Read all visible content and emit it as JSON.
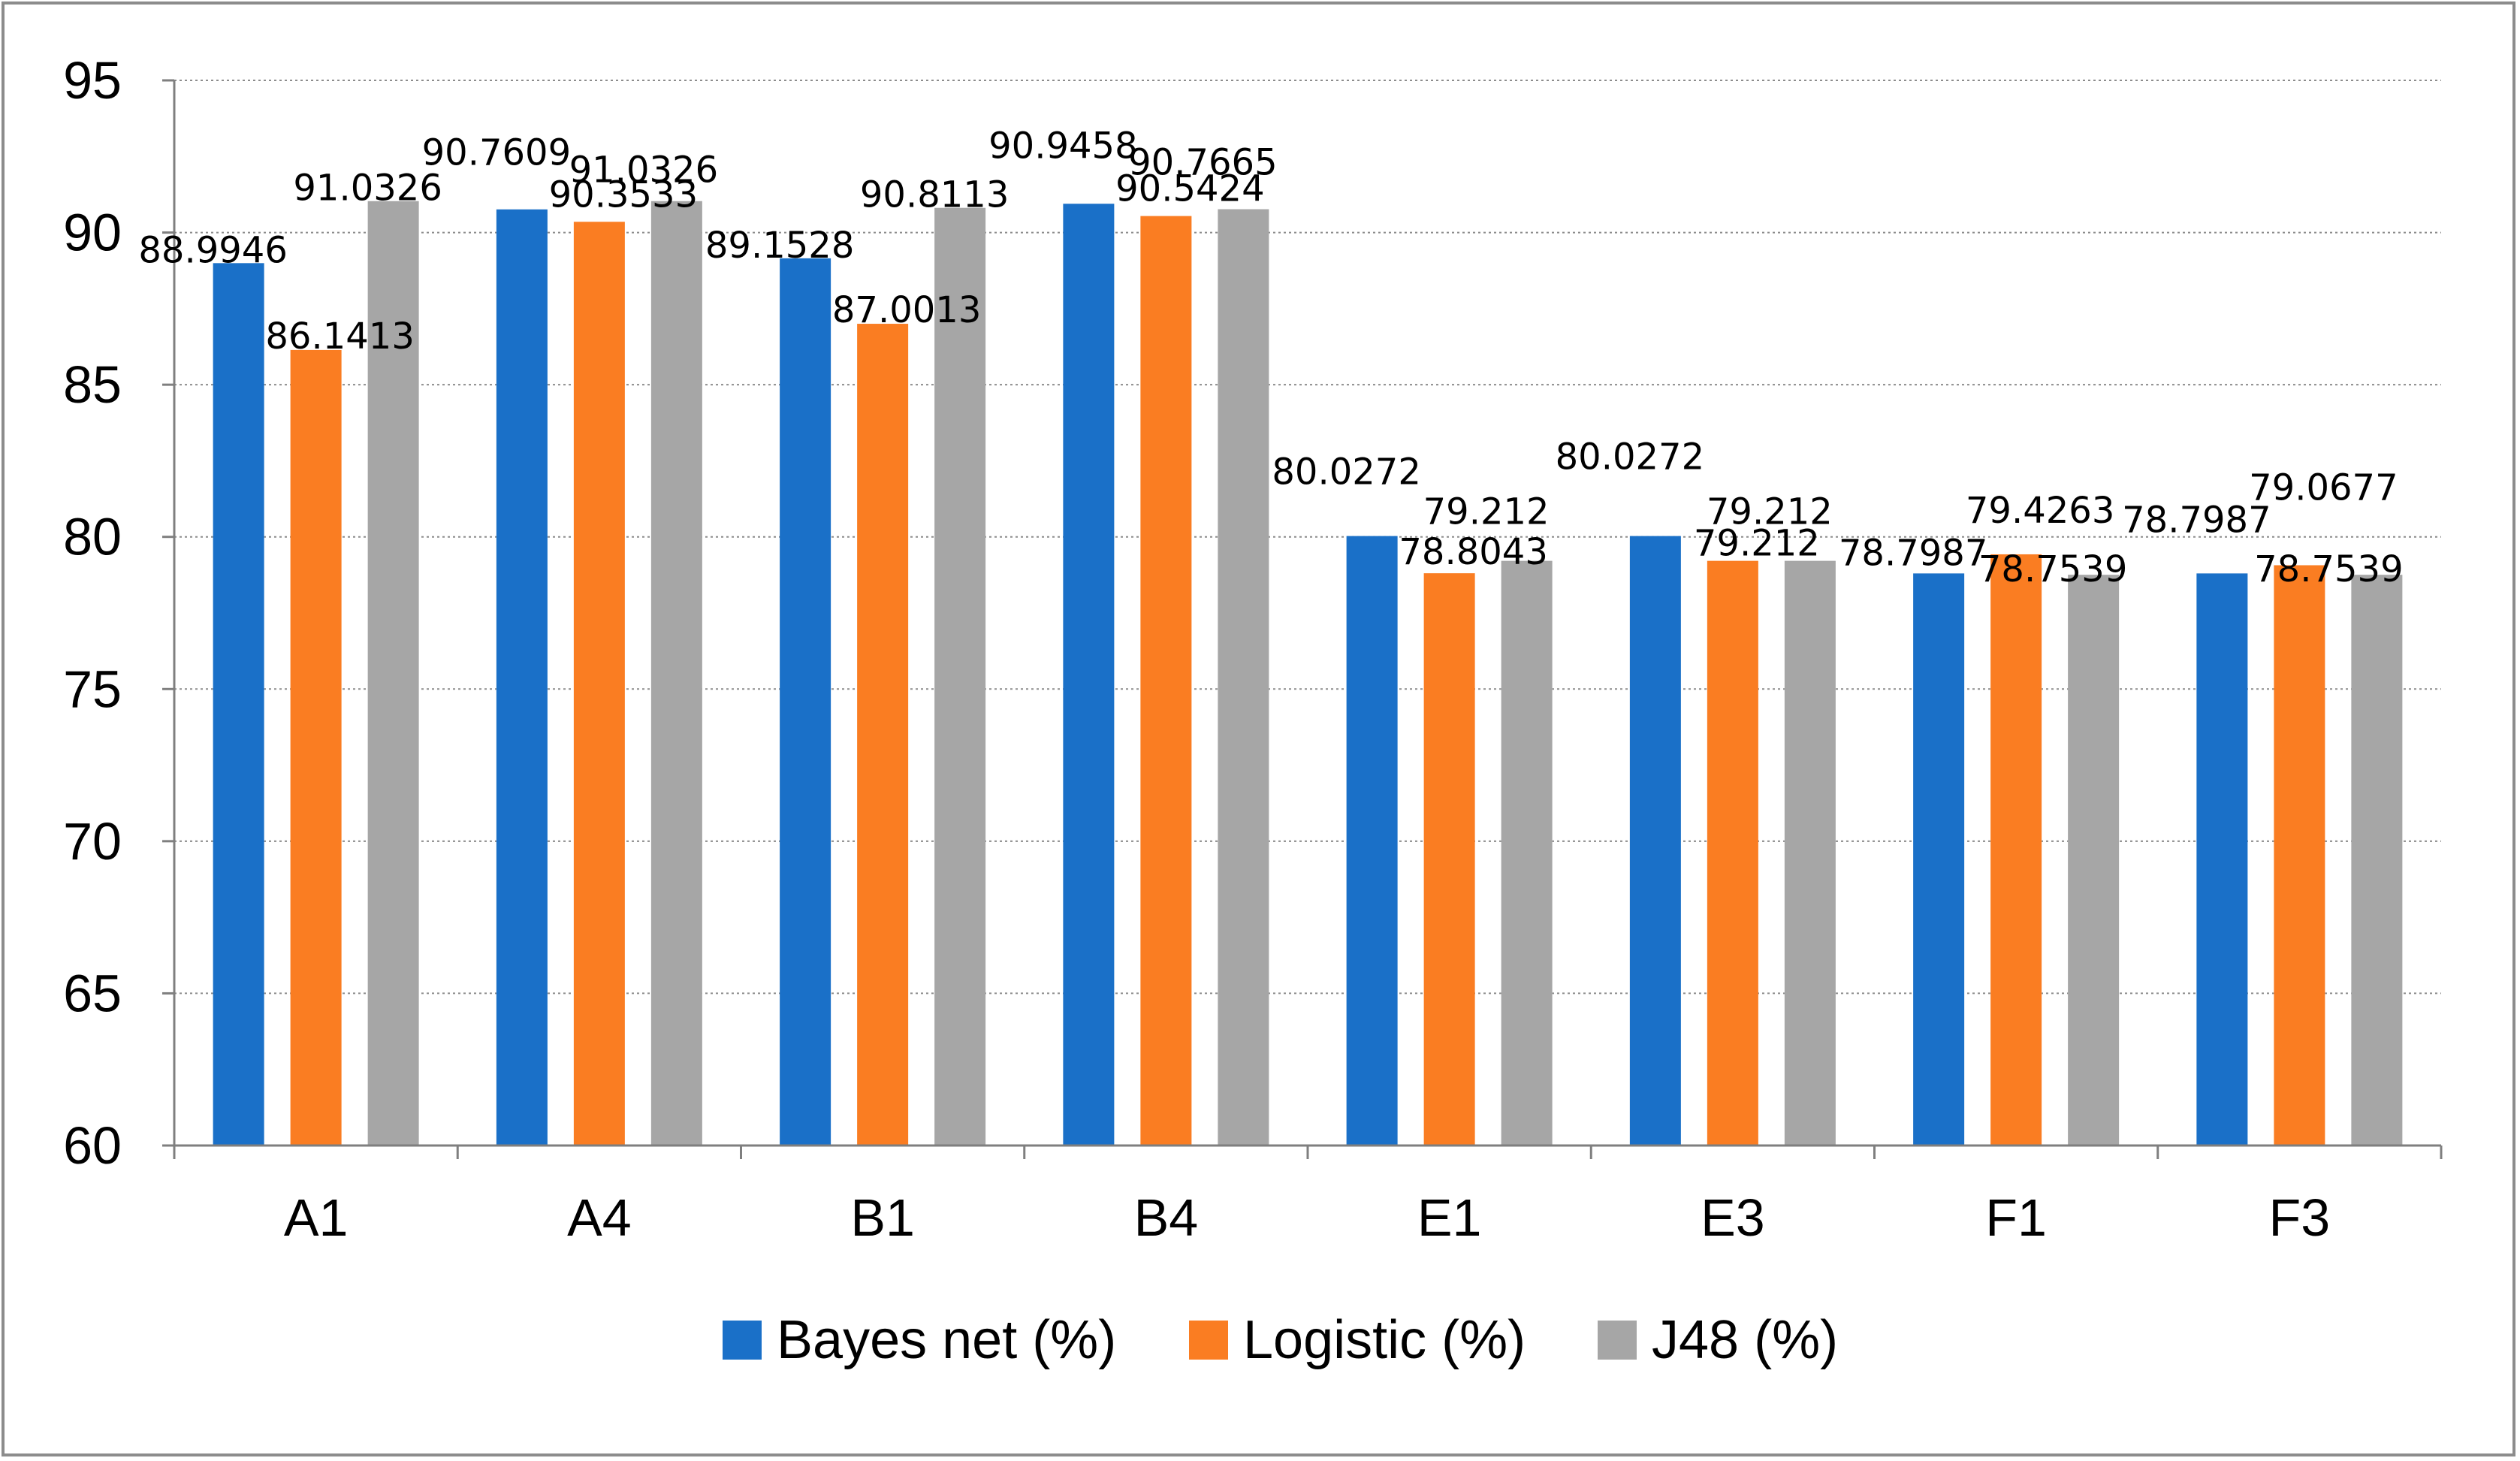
{
  "chart_data": {
    "type": "bar",
    "title": "",
    "xlabel": "",
    "ylabel": "",
    "ylim": [
      60,
      95
    ],
    "y_ticks": [
      60,
      65,
      70,
      75,
      80,
      85,
      90,
      95
    ],
    "grid": true,
    "legend_position": "bottom",
    "categories": [
      "A1",
      "A4",
      "B1",
      "B4",
      "E1",
      "E3",
      "F1",
      "F3"
    ],
    "series": [
      {
        "name": "Bayes net (%)",
        "color": "#1a70c8",
        "values": [
          88.9946,
          90.7609,
          89.1528,
          90.9458,
          80.0272,
          80.0272,
          78.7987,
          78.7987
        ],
        "labels": [
          "88.9946",
          "90.7609",
          "89.1528",
          "90.9458",
          "80.0272",
          "80.0272",
          "78.7987",
          "78.7987"
        ]
      },
      {
        "name": "Logistic (%)",
        "color": "#fa7d22",
        "values": [
          86.1413,
          90.3533,
          87.0013,
          90.5424,
          78.8043,
          79.212,
          79.4263,
          79.0677
        ],
        "labels": [
          "86.1413",
          "90.3533",
          "87.0013",
          "90.5424",
          "78.8043",
          "79.212",
          "79.4263",
          "79.0677"
        ]
      },
      {
        "name": "J48 (%)",
        "color": "#a6a6a6",
        "values": [
          91.0326,
          91.0326,
          90.8113,
          90.7665,
          79.212,
          79.212,
          78.7539,
          78.7539
        ],
        "labels": [
          "91.0326",
          "91.0326",
          "90.8113",
          "90.7665",
          "79.212",
          "79.212",
          "78.7539",
          "78.7539"
        ]
      }
    ]
  }
}
